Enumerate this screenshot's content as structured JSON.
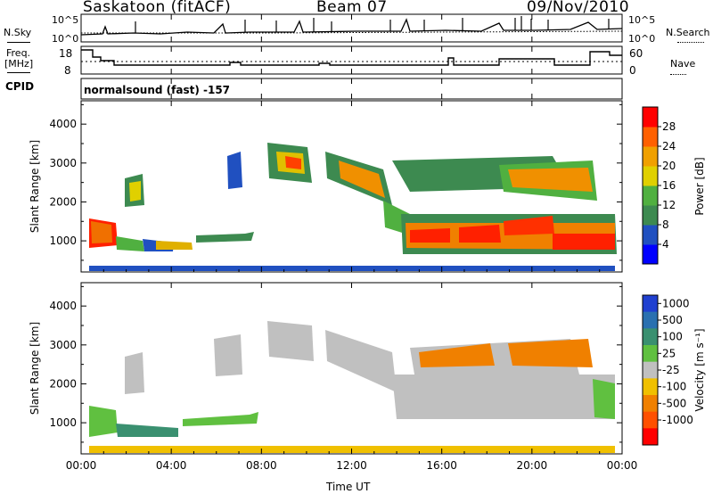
{
  "header": {
    "station": "Saskatoon (fitACF)",
    "beam": "Beam 07",
    "date": "09/Nov/2010"
  },
  "strip_panels": {
    "nsky_label": "N.Sky",
    "nsky_ticks": [
      "10^5",
      "10^0"
    ],
    "nsearch_label": "N.Search",
    "nsearch_ticks": [
      "10^5",
      "10^0"
    ],
    "freq_label_1": "Freq.",
    "freq_label_2": "[MHz]",
    "freq_ticks": [
      "18",
      "8"
    ],
    "nave_label": "Nave",
    "nave_ticks": [
      "60",
      "0"
    ],
    "cpid_label": "CPID",
    "cpid_value": "normalsound (fast) -157"
  },
  "chart_data": [
    {
      "type": "heatmap",
      "name": "power-panel",
      "ylabel": "Slant Range [km]",
      "yticks": [
        "1000",
        "2000",
        "3000",
        "4000"
      ],
      "ylim": [
        200,
        4600
      ],
      "colorbar_label": "Power [dB]",
      "colorbar_ticks": [
        "4",
        "8",
        "12",
        "16",
        "20",
        "24",
        "28"
      ],
      "colorbar_colors": [
        "#0000ff",
        "#2050c0",
        "#3d8a50",
        "#50b040",
        "#e0d000",
        "#f0a000",
        "#ff6000",
        "#ff0000"
      ]
    },
    {
      "type": "heatmap",
      "name": "velocity-panel",
      "ylabel": "Slant Range [km]",
      "yticks": [
        "1000",
        "2000",
        "3000",
        "4000"
      ],
      "ylim": [
        200,
        4600
      ],
      "colorbar_label": "Velocity [m s⁻¹]",
      "colorbar_ticks": [
        "1000",
        "500",
        "100",
        "25",
        "-25",
        "-100",
        "-500",
        "-1000"
      ],
      "colorbar_colors": [
        "#2040d0",
        "#2a70b0",
        "#3a9070",
        "#60c040",
        "#c0c0c0",
        "#f0c000",
        "#f08000",
        "#ff5000",
        "#ff0000"
      ]
    }
  ],
  "time_axis": {
    "xlabel": "Time UT",
    "ticks": [
      "00:00",
      "04:00",
      "08:00",
      "12:00",
      "16:00",
      "20:00",
      "00:00"
    ]
  }
}
